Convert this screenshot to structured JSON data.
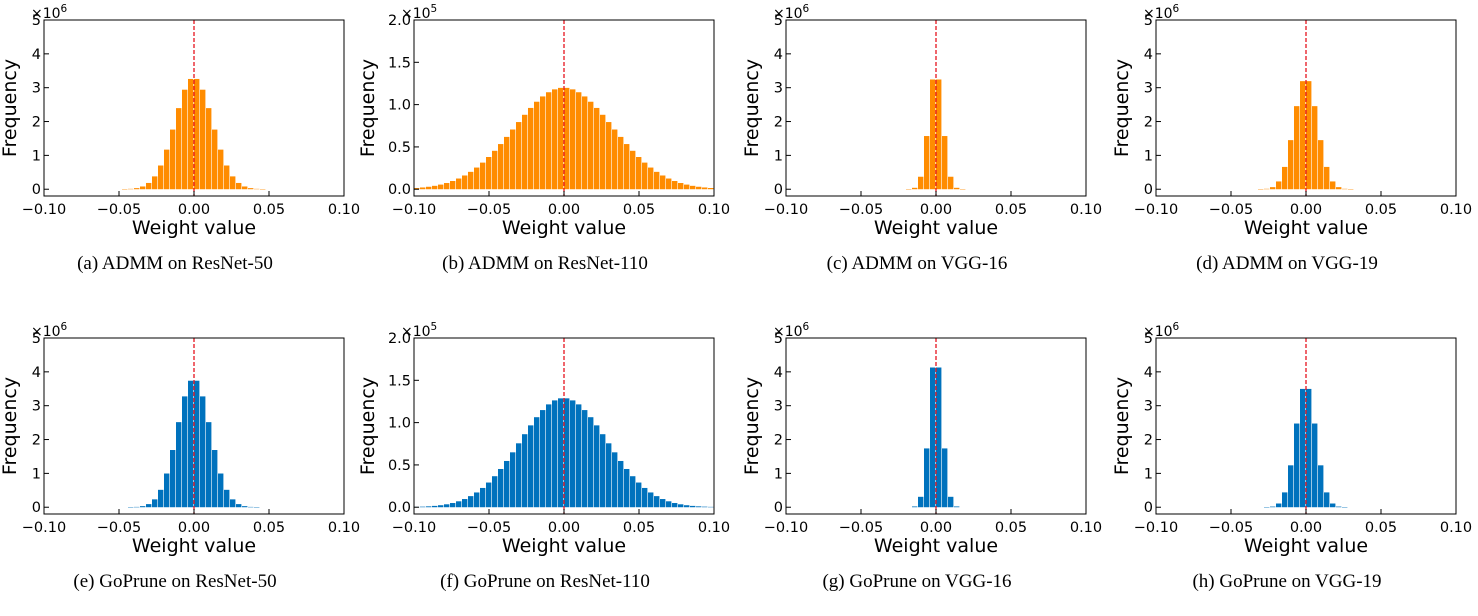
{
  "colors": {
    "admm": "#ff8c00",
    "goprune": "#0072bd",
    "zero_line": "#e6141e"
  },
  "chart_data": [
    {
      "type": "bar",
      "method": "admm",
      "caption": "(a) ADMM on ResNet-50",
      "xlabel": "Weight value",
      "ylabel": "Frequency",
      "multiplier": "×10^6",
      "xlim": [
        -0.1,
        0.1
      ],
      "ylim": [
        -0.2,
        5
      ],
      "xticks": [
        -0.1,
        -0.05,
        0.0,
        0.05,
        0.1
      ],
      "xtick_labels": [
        "−0.10",
        "−0.05",
        "0.00",
        "0.05",
        "0.10"
      ],
      "yticks": [
        0,
        1,
        2,
        3,
        4,
        5
      ],
      "ytick_labels": [
        "0",
        "1",
        "2",
        "3",
        "4",
        "5"
      ],
      "bin_width": 0.004,
      "peak": 3.3,
      "sigma": 0.0125,
      "zero_line": 0.0
    },
    {
      "type": "bar",
      "method": "admm",
      "caption": "(b) ADMM on ResNet-110",
      "xlabel": "Weight value",
      "ylabel": "Frequency",
      "multiplier": "×10^5",
      "xlim": [
        -0.1,
        0.1
      ],
      "ylim": [
        -0.08,
        2.0
      ],
      "xticks": [
        -0.1,
        -0.05,
        0.0,
        0.05,
        0.1
      ],
      "xtick_labels": [
        "−0.10",
        "−0.05",
        "0.00",
        "0.05",
        "0.10"
      ],
      "yticks": [
        0,
        0.5,
        1.0,
        1.5,
        2.0
      ],
      "ytick_labels": [
        "0.0",
        "0.5",
        "1.0",
        "1.5",
        "2.0"
      ],
      "bin_width": 0.004,
      "peak": 1.2,
      "sigma": 0.033,
      "zero_line": 0.0
    },
    {
      "type": "bar",
      "method": "admm",
      "caption": "(c) ADMM on VGG-16",
      "xlabel": "Weight value",
      "ylabel": "Frequency",
      "multiplier": "×10^6",
      "xlim": [
        -0.1,
        0.1
      ],
      "ylim": [
        -0.2,
        5
      ],
      "xticks": [
        -0.1,
        -0.05,
        0.0,
        0.05,
        0.1
      ],
      "xtick_labels": [
        "−0.10",
        "−0.05",
        "0.00",
        "0.05",
        "0.10"
      ],
      "yticks": [
        0,
        1,
        2,
        3,
        4,
        5
      ],
      "ytick_labels": [
        "0",
        "1",
        "2",
        "3",
        "4",
        "5"
      ],
      "bin_width": 0.004,
      "peak": 3.55,
      "sigma": 0.0047,
      "zero_line": 0.0
    },
    {
      "type": "bar",
      "method": "admm",
      "caption": "(d) ADMM on VGG-19",
      "xlabel": "Weight value",
      "ylabel": "Frequency",
      "multiplier": "×10^6",
      "xlim": [
        -0.1,
        0.1
      ],
      "ylim": [
        -0.2,
        5
      ],
      "xticks": [
        -0.1,
        -0.05,
        0.0,
        0.05,
        0.1
      ],
      "xtick_labels": [
        "−0.10",
        "−0.05",
        "0.00",
        "0.05",
        "0.10"
      ],
      "yticks": [
        0,
        1,
        2,
        3,
        4,
        5
      ],
      "ytick_labels": [
        "0",
        "1",
        "2",
        "3",
        "4",
        "5"
      ],
      "bin_width": 0.004,
      "peak": 3.3,
      "sigma": 0.0078,
      "zero_line": 0.0
    },
    {
      "type": "bar",
      "method": "goprune",
      "caption": "(e) GoPrune on ResNet-50",
      "xlabel": "Weight value",
      "ylabel": "Frequency",
      "multiplier": "×10^6",
      "xlim": [
        -0.1,
        0.1
      ],
      "ylim": [
        -0.2,
        5
      ],
      "xticks": [
        -0.1,
        -0.05,
        0.0,
        0.05,
        0.1
      ],
      "xtick_labels": [
        "−0.10",
        "−0.05",
        "0.00",
        "0.05",
        "0.10"
      ],
      "yticks": [
        0,
        1,
        2,
        3,
        4,
        5
      ],
      "ytick_labels": [
        "0",
        "1",
        "2",
        "3",
        "4",
        "5"
      ],
      "bin_width": 0.004,
      "peak": 3.8,
      "sigma": 0.011,
      "zero_line": 0.0
    },
    {
      "type": "bar",
      "method": "goprune",
      "caption": "(f) GoPrune on ResNet-110",
      "xlabel": "Weight value",
      "ylabel": "Frequency",
      "multiplier": "×10^5",
      "xlim": [
        -0.1,
        0.1
      ],
      "ylim": [
        -0.08,
        2.0
      ],
      "xticks": [
        -0.1,
        -0.05,
        0.0,
        0.05,
        0.1
      ],
      "xtick_labels": [
        "−0.10",
        "−0.05",
        "0.00",
        "0.05",
        "0.10"
      ],
      "yticks": [
        0,
        0.5,
        1.0,
        1.5,
        2.0
      ],
      "ytick_labels": [
        "0.0",
        "0.5",
        "1.0",
        "1.5",
        "2.0"
      ],
      "bin_width": 0.004,
      "peak": 1.29,
      "sigma": 0.029,
      "zero_line": 0.0
    },
    {
      "type": "bar",
      "method": "goprune",
      "caption": "(g) GoPrune on VGG-16",
      "xlabel": "Weight value",
      "ylabel": "Frequency",
      "multiplier": "×10^6",
      "xlim": [
        -0.1,
        0.1
      ],
      "ylim": [
        -0.2,
        5
      ],
      "xticks": [
        -0.1,
        -0.05,
        0.0,
        0.05,
        0.1
      ],
      "xtick_labels": [
        "−0.10",
        "−0.05",
        "0.00",
        "0.05",
        "0.10"
      ],
      "yticks": [
        0,
        1,
        2,
        3,
        4,
        5
      ],
      "ytick_labels": [
        "0",
        "1",
        "2",
        "3",
        "4",
        "5"
      ],
      "bin_width": 0.004,
      "peak": 4.6,
      "sigma": 0.0043,
      "zero_line": 0.0
    },
    {
      "type": "bar",
      "method": "goprune",
      "caption": "(h) GoPrune on VGG-19",
      "xlabel": "Weight value",
      "ylabel": "Frequency",
      "multiplier": "×10^6",
      "xlim": [
        -0.1,
        0.1
      ],
      "ylim": [
        -0.2,
        5
      ],
      "xticks": [
        -0.1,
        -0.05,
        0.0,
        0.05,
        0.1
      ],
      "xtick_labels": [
        "−0.10",
        "−0.05",
        "0.00",
        "0.05",
        "0.10"
      ],
      "yticks": [
        0,
        1,
        2,
        3,
        4,
        5
      ],
      "ytick_labels": [
        "0",
        "1",
        "2",
        "3",
        "4",
        "5"
      ],
      "bin_width": 0.004,
      "peak": 3.65,
      "sigma": 0.0068,
      "zero_line": 0.0
    }
  ]
}
